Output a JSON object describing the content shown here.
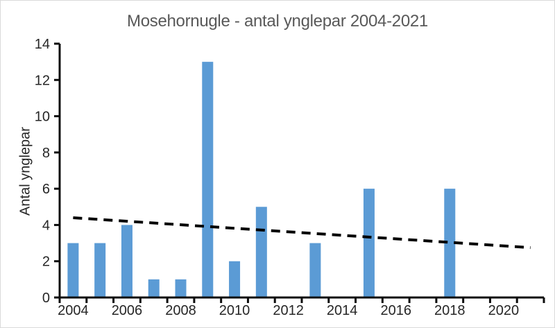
{
  "chart_data": {
    "type": "bar",
    "title": "Mosehornugle - antal ynglepar 2004-2021",
    "xlabel": "",
    "ylabel": "Antal ynglepar",
    "categories": [
      2004,
      2005,
      2006,
      2007,
      2008,
      2009,
      2010,
      2011,
      2012,
      2013,
      2014,
      2015,
      2016,
      2017,
      2018,
      2019,
      2020,
      2021
    ],
    "values": [
      3,
      3,
      4,
      1,
      1,
      13,
      2,
      5,
      0,
      3,
      0,
      6,
      0,
      0,
      6,
      0,
      0,
      0
    ],
    "ylim": [
      0,
      14
    ],
    "y_ticks": [
      0,
      2,
      4,
      6,
      8,
      10,
      12,
      14
    ],
    "x_tick_labels": [
      "2004",
      "2006",
      "2008",
      "2010",
      "2012",
      "2014",
      "2016",
      "2018",
      "2020"
    ],
    "grid": false,
    "legend": false,
    "trendline": {
      "style": "dashed",
      "start_year": 2004,
      "end_year": 2021,
      "start_value": 4.4,
      "end_value": 2.75
    }
  },
  "colors": {
    "bar": "#5B9BD5",
    "trendline": "#000000",
    "axis_line": "#0d0d0d",
    "axis_text": "#262626",
    "title_text": "#595959",
    "background": "#FFFFFF",
    "frame_border": "#D9D9D9"
  }
}
